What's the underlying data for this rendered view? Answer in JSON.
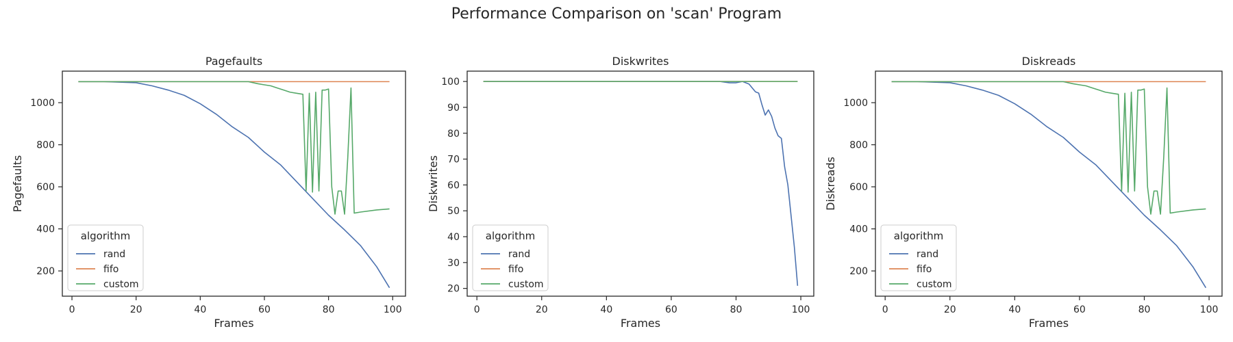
{
  "figure": {
    "suptitle": "Performance Comparison on 'scan' Program"
  },
  "colors": {
    "rand": "#4c72b0",
    "fifo": "#dd8452",
    "custom": "#55a868",
    "axes": "#262626",
    "background": "#ffffff"
  },
  "chart_data": [
    {
      "type": "line",
      "title": "Pagefaults",
      "xlabel": "Frames",
      "ylabel": "Pagefaults",
      "xlim": [
        -3,
        104
      ],
      "ylim": [
        80,
        1150
      ],
      "xticks": [
        0,
        20,
        40,
        60,
        80,
        100
      ],
      "yticks": [
        200,
        400,
        600,
        800,
        1000
      ],
      "grid": false,
      "legend": {
        "title": "algorithm",
        "position": "lower-left"
      },
      "series": [
        {
          "name": "rand",
          "x": [
            2,
            10,
            20,
            25,
            30,
            35,
            40,
            45,
            50,
            55,
            60,
            65,
            70,
            75,
            80,
            85,
            90,
            95,
            99
          ],
          "y": [
            1100,
            1100,
            1095,
            1080,
            1060,
            1035,
            995,
            945,
            885,
            835,
            765,
            705,
            625,
            545,
            465,
            395,
            320,
            220,
            120
          ]
        },
        {
          "name": "fifo",
          "x": [
            2,
            99
          ],
          "y": [
            1100,
            1100
          ]
        },
        {
          "name": "custom",
          "x": [
            2,
            20,
            40,
            55,
            58,
            60,
            62,
            64,
            66,
            68,
            70,
            72,
            73,
            74,
            75,
            76,
            77,
            78,
            79,
            80,
            81,
            82,
            83,
            84,
            85,
            86,
            87,
            88,
            90,
            95,
            99
          ],
          "y": [
            1100,
            1100,
            1100,
            1100,
            1090,
            1085,
            1080,
            1070,
            1060,
            1050,
            1045,
            1040,
            580,
            1045,
            575,
            1050,
            580,
            1060,
            1060,
            1065,
            600,
            470,
            580,
            580,
            470,
            740,
            1070,
            475,
            480,
            490,
            495
          ]
        }
      ]
    },
    {
      "type": "line",
      "title": "Diskwrites",
      "xlabel": "Frames",
      "ylabel": "Diskwrites",
      "xlim": [
        -3,
        104
      ],
      "ylim": [
        17,
        104
      ],
      "xticks": [
        0,
        20,
        40,
        60,
        80,
        100
      ],
      "yticks": [
        20,
        30,
        40,
        50,
        60,
        70,
        80,
        90,
        100
      ],
      "grid": false,
      "legend": {
        "title": "algorithm",
        "position": "lower-left"
      },
      "series": [
        {
          "name": "rand",
          "x": [
            2,
            50,
            75,
            78,
            80,
            82,
            84,
            86,
            87,
            88,
            89,
            90,
            91,
            92,
            93,
            94,
            95,
            96,
            97,
            98,
            99
          ],
          "y": [
            100,
            100,
            100,
            99.5,
            99.5,
            100,
            99,
            96,
            95.5,
            91,
            87,
            89,
            86.5,
            82,
            79,
            78,
            67,
            60,
            48,
            36,
            21
          ]
        },
        {
          "name": "fifo",
          "x": [
            2,
            99
          ],
          "y": [
            100,
            100
          ]
        },
        {
          "name": "custom",
          "x": [
            2,
            99
          ],
          "y": [
            100,
            100
          ]
        }
      ]
    },
    {
      "type": "line",
      "title": "Diskreads",
      "xlabel": "Frames",
      "ylabel": "Diskreads",
      "xlim": [
        -3,
        104
      ],
      "ylim": [
        80,
        1150
      ],
      "xticks": [
        0,
        20,
        40,
        60,
        80,
        100
      ],
      "yticks": [
        200,
        400,
        600,
        800,
        1000
      ],
      "grid": false,
      "legend": {
        "title": "algorithm",
        "position": "lower-left"
      },
      "series": [
        {
          "name": "rand",
          "x": [
            2,
            10,
            20,
            25,
            30,
            35,
            40,
            45,
            50,
            55,
            60,
            65,
            70,
            75,
            80,
            85,
            90,
            95,
            99
          ],
          "y": [
            1100,
            1100,
            1095,
            1080,
            1060,
            1035,
            995,
            945,
            885,
            835,
            765,
            705,
            625,
            545,
            465,
            395,
            320,
            220,
            120
          ]
        },
        {
          "name": "fifo",
          "x": [
            2,
            99
          ],
          "y": [
            1100,
            1100
          ]
        },
        {
          "name": "custom",
          "x": [
            2,
            20,
            40,
            55,
            58,
            60,
            62,
            64,
            66,
            68,
            70,
            72,
            73,
            74,
            75,
            76,
            77,
            78,
            79,
            80,
            81,
            82,
            83,
            84,
            85,
            86,
            87,
            88,
            90,
            95,
            99
          ],
          "y": [
            1100,
            1100,
            1100,
            1100,
            1090,
            1085,
            1080,
            1070,
            1060,
            1050,
            1045,
            1040,
            580,
            1045,
            575,
            1050,
            580,
            1060,
            1060,
            1065,
            600,
            470,
            580,
            580,
            470,
            740,
            1070,
            475,
            480,
            490,
            495
          ]
        }
      ]
    }
  ]
}
